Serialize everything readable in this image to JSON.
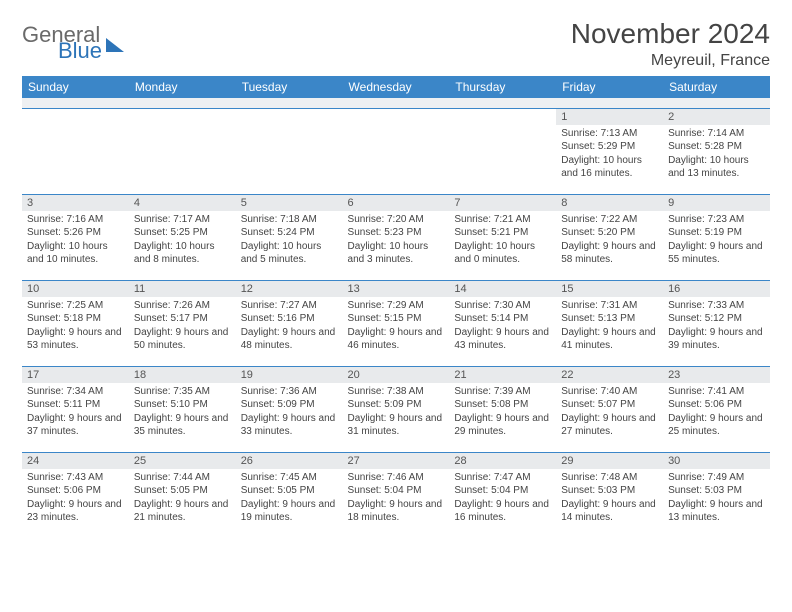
{
  "brand": {
    "word1": "General",
    "word2": "Blue"
  },
  "title": "November 2024",
  "location": "Meyreuil, France",
  "colors": {
    "header_bg": "#3b86c8",
    "rule": "#3b86c8",
    "daynum_bg": "#e8eaec"
  },
  "weekdays": [
    "Sunday",
    "Monday",
    "Tuesday",
    "Wednesday",
    "Thursday",
    "Friday",
    "Saturday"
  ],
  "weeks": [
    [
      {
        "n": "",
        "sr": "",
        "ss": "",
        "dl": ""
      },
      {
        "n": "",
        "sr": "",
        "ss": "",
        "dl": ""
      },
      {
        "n": "",
        "sr": "",
        "ss": "",
        "dl": ""
      },
      {
        "n": "",
        "sr": "",
        "ss": "",
        "dl": ""
      },
      {
        "n": "",
        "sr": "",
        "ss": "",
        "dl": ""
      },
      {
        "n": "1",
        "sr": "Sunrise: 7:13 AM",
        "ss": "Sunset: 5:29 PM",
        "dl": "Daylight: 10 hours and 16 minutes."
      },
      {
        "n": "2",
        "sr": "Sunrise: 7:14 AM",
        "ss": "Sunset: 5:28 PM",
        "dl": "Daylight: 10 hours and 13 minutes."
      }
    ],
    [
      {
        "n": "3",
        "sr": "Sunrise: 7:16 AM",
        "ss": "Sunset: 5:26 PM",
        "dl": "Daylight: 10 hours and 10 minutes."
      },
      {
        "n": "4",
        "sr": "Sunrise: 7:17 AM",
        "ss": "Sunset: 5:25 PM",
        "dl": "Daylight: 10 hours and 8 minutes."
      },
      {
        "n": "5",
        "sr": "Sunrise: 7:18 AM",
        "ss": "Sunset: 5:24 PM",
        "dl": "Daylight: 10 hours and 5 minutes."
      },
      {
        "n": "6",
        "sr": "Sunrise: 7:20 AM",
        "ss": "Sunset: 5:23 PM",
        "dl": "Daylight: 10 hours and 3 minutes."
      },
      {
        "n": "7",
        "sr": "Sunrise: 7:21 AM",
        "ss": "Sunset: 5:21 PM",
        "dl": "Daylight: 10 hours and 0 minutes."
      },
      {
        "n": "8",
        "sr": "Sunrise: 7:22 AM",
        "ss": "Sunset: 5:20 PM",
        "dl": "Daylight: 9 hours and 58 minutes."
      },
      {
        "n": "9",
        "sr": "Sunrise: 7:23 AM",
        "ss": "Sunset: 5:19 PM",
        "dl": "Daylight: 9 hours and 55 minutes."
      }
    ],
    [
      {
        "n": "10",
        "sr": "Sunrise: 7:25 AM",
        "ss": "Sunset: 5:18 PM",
        "dl": "Daylight: 9 hours and 53 minutes."
      },
      {
        "n": "11",
        "sr": "Sunrise: 7:26 AM",
        "ss": "Sunset: 5:17 PM",
        "dl": "Daylight: 9 hours and 50 minutes."
      },
      {
        "n": "12",
        "sr": "Sunrise: 7:27 AM",
        "ss": "Sunset: 5:16 PM",
        "dl": "Daylight: 9 hours and 48 minutes."
      },
      {
        "n": "13",
        "sr": "Sunrise: 7:29 AM",
        "ss": "Sunset: 5:15 PM",
        "dl": "Daylight: 9 hours and 46 minutes."
      },
      {
        "n": "14",
        "sr": "Sunrise: 7:30 AM",
        "ss": "Sunset: 5:14 PM",
        "dl": "Daylight: 9 hours and 43 minutes."
      },
      {
        "n": "15",
        "sr": "Sunrise: 7:31 AM",
        "ss": "Sunset: 5:13 PM",
        "dl": "Daylight: 9 hours and 41 minutes."
      },
      {
        "n": "16",
        "sr": "Sunrise: 7:33 AM",
        "ss": "Sunset: 5:12 PM",
        "dl": "Daylight: 9 hours and 39 minutes."
      }
    ],
    [
      {
        "n": "17",
        "sr": "Sunrise: 7:34 AM",
        "ss": "Sunset: 5:11 PM",
        "dl": "Daylight: 9 hours and 37 minutes."
      },
      {
        "n": "18",
        "sr": "Sunrise: 7:35 AM",
        "ss": "Sunset: 5:10 PM",
        "dl": "Daylight: 9 hours and 35 minutes."
      },
      {
        "n": "19",
        "sr": "Sunrise: 7:36 AM",
        "ss": "Sunset: 5:09 PM",
        "dl": "Daylight: 9 hours and 33 minutes."
      },
      {
        "n": "20",
        "sr": "Sunrise: 7:38 AM",
        "ss": "Sunset: 5:09 PM",
        "dl": "Daylight: 9 hours and 31 minutes."
      },
      {
        "n": "21",
        "sr": "Sunrise: 7:39 AM",
        "ss": "Sunset: 5:08 PM",
        "dl": "Daylight: 9 hours and 29 minutes."
      },
      {
        "n": "22",
        "sr": "Sunrise: 7:40 AM",
        "ss": "Sunset: 5:07 PM",
        "dl": "Daylight: 9 hours and 27 minutes."
      },
      {
        "n": "23",
        "sr": "Sunrise: 7:41 AM",
        "ss": "Sunset: 5:06 PM",
        "dl": "Daylight: 9 hours and 25 minutes."
      }
    ],
    [
      {
        "n": "24",
        "sr": "Sunrise: 7:43 AM",
        "ss": "Sunset: 5:06 PM",
        "dl": "Daylight: 9 hours and 23 minutes."
      },
      {
        "n": "25",
        "sr": "Sunrise: 7:44 AM",
        "ss": "Sunset: 5:05 PM",
        "dl": "Daylight: 9 hours and 21 minutes."
      },
      {
        "n": "26",
        "sr": "Sunrise: 7:45 AM",
        "ss": "Sunset: 5:05 PM",
        "dl": "Daylight: 9 hours and 19 minutes."
      },
      {
        "n": "27",
        "sr": "Sunrise: 7:46 AM",
        "ss": "Sunset: 5:04 PM",
        "dl": "Daylight: 9 hours and 18 minutes."
      },
      {
        "n": "28",
        "sr": "Sunrise: 7:47 AM",
        "ss": "Sunset: 5:04 PM",
        "dl": "Daylight: 9 hours and 16 minutes."
      },
      {
        "n": "29",
        "sr": "Sunrise: 7:48 AM",
        "ss": "Sunset: 5:03 PM",
        "dl": "Daylight: 9 hours and 14 minutes."
      },
      {
        "n": "30",
        "sr": "Sunrise: 7:49 AM",
        "ss": "Sunset: 5:03 PM",
        "dl": "Daylight: 9 hours and 13 minutes."
      }
    ]
  ]
}
